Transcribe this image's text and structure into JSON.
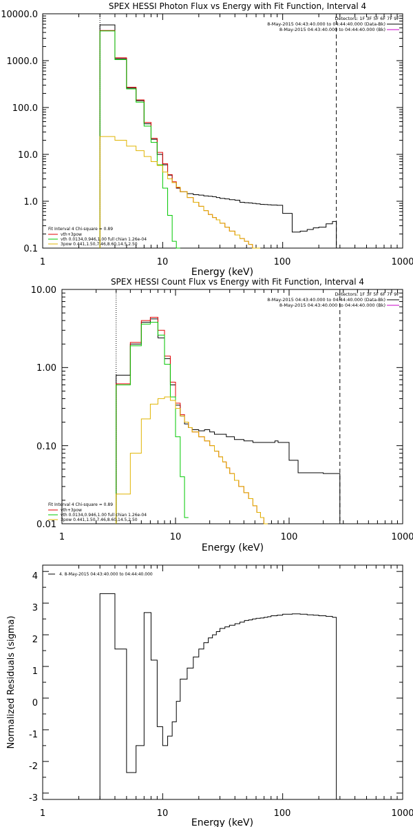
{
  "figure": {
    "photon": {
      "title": "SPEX HESSI Photon Flux vs Energy with Fit Function, Interval 4",
      "xlabel": "Energy (keV)",
      "x_ticks": [
        "1",
        "10",
        "100",
        "1000"
      ],
      "y_ticks": [
        "0.1",
        "1.0",
        "10.0",
        "100.0",
        "1000.0",
        "10000.0"
      ],
      "detectors": "Detectors: 1F 3F 5F 6F 7F 9F",
      "time_bkg": "8-May-2015 04:43:40.000 to 04:44:40.000 (Data-Bk)",
      "time_bk": "8-May-2015 04:43:40.000 to 04:44:40.000 (Bk)",
      "fit_header": "Fit Interval 4   Chi-square = 0.89",
      "legend": [
        {
          "label": "vth+3pow",
          "color": "#e00000"
        },
        {
          "label": "vth 0.0134,0.946,1.00  full chian 1.26e-04",
          "color": "#00c800"
        },
        {
          "label": "3pow 0.441,1.50,7.46,8.60,14.5,2.50",
          "color": "#e0b400"
        }
      ]
    },
    "count": {
      "title": "SPEX HESSI Count Flux vs Energy with Fit Function, Interval 4",
      "xlabel": "Energy (keV)",
      "x_ticks": [
        "1",
        "10",
        "100",
        "1000"
      ],
      "y_ticks": [
        "0.01",
        "0.10",
        "1.00",
        "10.00"
      ],
      "detectors": "Detectors: 1F 3F 5F 6F 7F 9F",
      "time_bkg": "8-May-2015 04:43:40.000 to 04:44:40.000 (Data-Bk)",
      "time_bk": "8-May-2015 04:43:40.000 to 04:44:40.000 (Bk)",
      "fit_header": "Fit Interval 4   Chi-square = 0.89",
      "legend": [
        {
          "label": "vth+3pow",
          "color": "#e00000"
        },
        {
          "label": "vth 0.0134,0.946,1.00  full chian 1.26e-04",
          "color": "#00c800"
        },
        {
          "label": "3pow 0.441,1.50,7.46,8.60,14.5,2.50",
          "color": "#e0b400"
        }
      ]
    },
    "resid": {
      "xlabel": "Energy (keV)",
      "ylabel": "Normalized Residuals (sigma)",
      "x_ticks": [
        "1",
        "10",
        "100",
        "1000"
      ],
      "y_ticks": [
        "-3",
        "-2",
        "-1",
        "0",
        "1",
        "2",
        "3",
        "4"
      ],
      "legend": "4.  8-May-2015 04:43:40.000 to 04:44:40.000"
    }
  },
  "chart_data": [
    {
      "type": "line",
      "title": "SPEX HESSI Photon Flux vs Energy with Fit Function, Interval 4",
      "xlabel": "Energy (keV)",
      "ylabel": "",
      "xscale": "log",
      "yscale": "log",
      "xlim": [
        1,
        1000
      ],
      "ylim": [
        0.1,
        10000
      ],
      "grid": false,
      "legend_position": "bottom-left",
      "annotations": [
        "Detectors: 1F 3F 5F 6F 7F 9F",
        "dotted vertical line at 3 keV",
        "dashed vertical line at 280 keV"
      ],
      "bin_edges": [
        3,
        4,
        5,
        6,
        7,
        8,
        9,
        10,
        11,
        12,
        13,
        14,
        16,
        18,
        20,
        22,
        24,
        26,
        28,
        30,
        33,
        36,
        40,
        44,
        48,
        52,
        56,
        60,
        65,
        70,
        75,
        80,
        90,
        100,
        120,
        140,
        160,
        180,
        200,
        230,
        260,
        280
      ],
      "series": [
        {
          "name": "Data-Bk",
          "color": "#000000",
          "values": [
            5800,
            1100,
            260,
            140,
            45,
            21,
            10,
            6,
            3.6,
            2.5,
            1.9,
            1.6,
            1.45,
            1.38,
            1.35,
            1.3,
            1.28,
            1.25,
            1.2,
            1.15,
            1.12,
            1.08,
            1.05,
            0.95,
            0.93,
            0.92,
            0.9,
            0.88,
            0.86,
            0.85,
            0.84,
            0.83,
            0.82,
            0.55,
            0.22,
            0.23,
            0.25,
            0.27,
            0.28,
            0.33,
            0.37
          ]
        },
        {
          "name": "vth+3pow",
          "color": "#e00000",
          "values": [
            4400,
            1150,
            270,
            145,
            48,
            22,
            11,
            6.3,
            3.7,
            2.6,
            1.95,
            1.6,
            1.2,
            0.95,
            0.78,
            0.63,
            0.52,
            0.45,
            0.4,
            0.34,
            0.28,
            0.23,
            0.19,
            0.16,
            0.14,
            0.12,
            0.1,
            0.09
          ]
        },
        {
          "name": "vth",
          "color": "#00c800",
          "values": [
            4300,
            1050,
            250,
            130,
            40,
            18,
            6,
            1.9,
            0.5,
            0.14,
            0.04
          ]
        },
        {
          "name": "3pow",
          "color": "#e0b400",
          "values": [
            24,
            20,
            15,
            12,
            9,
            7,
            5.8,
            4.2,
            3,
            2.5,
            2,
            1.6,
            1.2,
            0.95,
            0.78,
            0.63,
            0.52,
            0.45,
            0.4,
            0.34,
            0.28,
            0.23,
            0.19,
            0.16,
            0.14,
            0.12,
            0.1,
            0.09
          ]
        }
      ]
    },
    {
      "type": "line",
      "title": "SPEX HESSI Count Flux vs Energy with Fit Function, Interval 4",
      "xlabel": "Energy (keV)",
      "ylabel": "",
      "xscale": "log",
      "yscale": "log",
      "xlim": [
        1,
        1000
      ],
      "ylim": [
        0.01,
        10
      ],
      "grid": false,
      "legend_position": "bottom-left",
      "annotations": [
        "Detectors: 1F 3F 5F 6F 7F 9F",
        "dotted vertical line at 3 keV",
        "dashed vertical line at 280 keV"
      ],
      "bin_edges": [
        3,
        4,
        5,
        6,
        7,
        8,
        9,
        10,
        11,
        12,
        13,
        14,
        16,
        18,
        20,
        22,
        24,
        26,
        28,
        30,
        33,
        36,
        40,
        44,
        48,
        52,
        56,
        60,
        65,
        70,
        75,
        80,
        90,
        100,
        120,
        140,
        160,
        180,
        200,
        230,
        260,
        280
      ],
      "series": [
        {
          "name": "Data-Bk",
          "color": "#000000",
          "values": [
            0.8,
            2.0,
            3.8,
            4.2,
            2.4,
            1.3,
            0.6,
            0.33,
            0.24,
            0.19,
            0.17,
            0.16,
            0.155,
            0.16,
            0.15,
            0.14,
            0.14,
            0.14,
            0.13,
            0.13,
            0.12,
            0.12,
            0.115,
            0.115,
            0.11,
            0.11,
            0.11,
            0.11,
            0.11,
            0.11,
            0.115,
            0.11,
            0.11,
            0.065,
            0.045,
            0.045,
            0.045,
            0.045,
            0.044,
            0.044,
            0.044
          ]
        },
        {
          "name": "vth+3pow",
          "color": "#e00000",
          "values": [
            0.62,
            2.1,
            4.0,
            4.4,
            3.0,
            1.4,
            0.65,
            0.35,
            0.25,
            0.2,
            0.17,
            0.15,
            0.13,
            0.115,
            0.1,
            0.085,
            0.072,
            0.062,
            0.052,
            0.044,
            0.036,
            0.03,
            0.025,
            0.021,
            0.017,
            0.014,
            0.012,
            0.01
          ]
        },
        {
          "name": "vth",
          "color": "#00c800",
          "values": [
            0.6,
            1.9,
            3.6,
            3.8,
            2.6,
            1.1,
            0.42,
            0.13,
            0.04,
            0.012
          ]
        },
        {
          "name": "3pow",
          "color": "#e0b400",
          "values": [
            0.024,
            0.08,
            0.22,
            0.34,
            0.4,
            0.42,
            0.38,
            0.3,
            0.24,
            0.2,
            0.17,
            0.15,
            0.13,
            0.115,
            0.1,
            0.085,
            0.072,
            0.062,
            0.052,
            0.044,
            0.036,
            0.03,
            0.025,
            0.021,
            0.017,
            0.014,
            0.012,
            0.01
          ]
        }
      ]
    },
    {
      "type": "line",
      "title": "",
      "xlabel": "Energy (keV)",
      "ylabel": "Normalized Residuals (sigma)",
      "xscale": "log",
      "yscale": "linear",
      "xlim": [
        1,
        1000
      ],
      "ylim": [
        -3.2,
        4.2
      ],
      "grid": false,
      "legend_position": "top-left",
      "bin_edges": [
        3,
        4,
        5,
        6,
        7,
        8,
        9,
        10,
        11,
        12,
        13,
        14,
        16,
        18,
        20,
        22,
        24,
        26,
        28,
        30,
        33,
        36,
        40,
        44,
        48,
        52,
        56,
        60,
        65,
        70,
        75,
        80,
        90,
        100,
        120,
        140,
        160,
        180,
        200,
        230,
        260,
        280
      ],
      "series": [
        {
          "name": "4.  8-May-2015 04:43:40.000 to 04:44:40.000",
          "color": "#000000",
          "values": [
            3.3,
            1.55,
            -2.35,
            -1.5,
            2.7,
            1.2,
            -0.9,
            -1.5,
            -1.2,
            -0.75,
            -0.1,
            0.6,
            0.95,
            1.3,
            1.55,
            1.75,
            1.9,
            2.0,
            2.1,
            2.2,
            2.25,
            2.3,
            2.35,
            2.4,
            2.45,
            2.47,
            2.5,
            2.52,
            2.53,
            2.55,
            2.57,
            2.6,
            2.62,
            2.65,
            2.66,
            2.65,
            2.63,
            2.62,
            2.6,
            2.58,
            2.55
          ]
        }
      ]
    }
  ]
}
